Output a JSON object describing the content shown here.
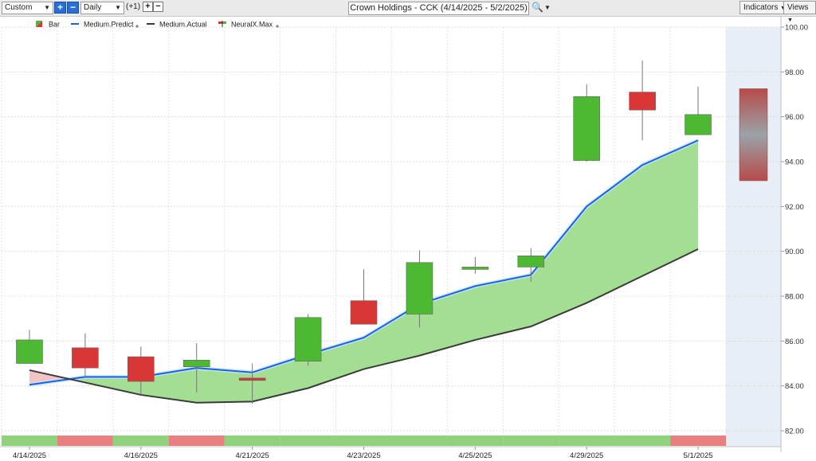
{
  "toolbar": {
    "period": "Custom",
    "interval": "Daily",
    "offset": "(+1)",
    "title": "Crown Holdings - CCK (4/14/2025 - 5/2/2025)",
    "indicators_label": "Indicators",
    "views_label": "Views"
  },
  "legend": [
    {
      "label": "Bar",
      "icon": "bar-icon"
    },
    {
      "label": "Medium.Predict",
      "icon": "blue-line-icon"
    },
    {
      "label": "Medium.Actual",
      "icon": "black-line-icon"
    },
    {
      "label": "NeuralX.Max",
      "icon": "neuralx-icon"
    }
  ],
  "colors": {
    "up": "#4db832",
    "down": "#d93636",
    "predict": "#1f5fe0",
    "actual": "#3a3a3a",
    "fill": "#9edc8c",
    "neg_fill": "#f2c4c4",
    "strip_green": "#8fd17d",
    "strip_red": "#e88080",
    "forecast_bg": "#e8eef6"
  },
  "chart_data": {
    "type": "candlestick",
    "ylim": [
      82,
      100
    ],
    "yticks": [
      "100.00",
      "98.00",
      "96.00",
      "94.00",
      "92.00",
      "90.00",
      "88.00",
      "86.00",
      "84.00",
      "82.00"
    ],
    "xlabels": [
      "4/14/2025",
      "4/16/2025",
      "4/21/2025",
      "4/23/2025",
      "4/25/2025",
      "4/29/2025",
      "5/1/2025"
    ],
    "candles": [
      {
        "open": 85.0,
        "close": 86.05,
        "high": 86.5,
        "low": 85.0
      },
      {
        "open": 85.7,
        "close": 84.8,
        "high": 86.35,
        "low": 84.45
      },
      {
        "open": 85.3,
        "close": 84.2,
        "high": 85.75,
        "low": 83.6
      },
      {
        "open": 84.85,
        "close": 85.15,
        "high": 85.9,
        "low": 83.7
      },
      {
        "open": 84.35,
        "close": 84.25,
        "high": 85.0,
        "low": 83.2
      },
      {
        "open": 85.1,
        "close": 87.05,
        "high": 87.2,
        "low": 84.9
      },
      {
        "open": 87.8,
        "close": 86.75,
        "high": 89.2,
        "low": 86.75
      },
      {
        "open": 87.2,
        "close": 89.5,
        "high": 90.05,
        "low": 86.6
      },
      {
        "open": 89.2,
        "close": 89.3,
        "high": 89.75,
        "low": 89.0
      },
      {
        "open": 89.3,
        "close": 89.8,
        "high": 90.15,
        "low": 88.65
      },
      {
        "open": 94.05,
        "close": 96.9,
        "high": 97.45,
        "low": 94.0
      },
      {
        "open": 97.1,
        "close": 96.3,
        "high": 98.5,
        "low": 94.95
      },
      {
        "open": 95.2,
        "close": 96.1,
        "high": 97.35,
        "low": 95.2
      }
    ],
    "forecast_bar": {
      "high": 97.25,
      "low": 93.15
    },
    "series": [
      {
        "name": "Medium.Predict",
        "values": [
          84.05,
          84.4,
          84.4,
          84.8,
          84.6,
          85.4,
          86.15,
          87.65,
          88.45,
          88.95,
          92.0,
          93.85,
          94.95
        ]
      },
      {
        "name": "Medium.Actual",
        "values": [
          84.7,
          84.15,
          83.6,
          83.25,
          83.3,
          83.9,
          84.75,
          85.35,
          86.05,
          86.65,
          87.7,
          88.9,
          90.1
        ]
      }
    ],
    "strip": [
      "up",
      "down",
      "up",
      "down",
      "up",
      "up",
      "up",
      "up",
      "up",
      "up",
      "up",
      "up",
      "down"
    ]
  }
}
